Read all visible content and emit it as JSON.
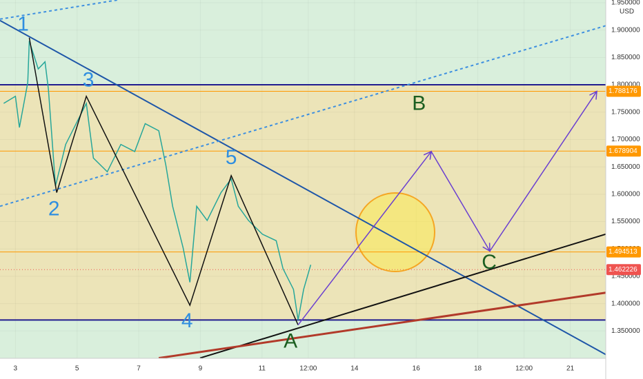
{
  "chart_data": {
    "type": "line",
    "currency": "USD",
    "xlim": [
      2.5,
      22.15
    ],
    "xticks": [
      3,
      5,
      7,
      9,
      11,
      {
        "value": 12.5,
        "label": "12:00"
      },
      14,
      16,
      18,
      {
        "value": 19.5,
        "label": "12:00"
      },
      21
    ],
    "ylim": [
      1.3,
      1.955
    ],
    "yticks": [
      {
        "value": 1.95,
        "label": "1.950000"
      },
      {
        "value": 1.9,
        "label": "1.900000"
      },
      {
        "value": 1.85,
        "label": "1.850000"
      },
      {
        "value": 1.8,
        "label": "1.800000"
      },
      {
        "value": 1.75,
        "label": "1.750000"
      },
      {
        "value": 1.7,
        "label": "1.700000"
      },
      {
        "value": 1.65,
        "label": "1.650000"
      },
      {
        "value": 1.6,
        "label": "1.600000"
      },
      {
        "value": 1.55,
        "label": "1.550000"
      },
      {
        "value": 1.5,
        "label": "1.500000"
      },
      {
        "value": 1.45,
        "label": "1.450000"
      },
      {
        "value": 1.4,
        "label": "1.400000"
      },
      {
        "value": 1.35,
        "label": "1.350000"
      }
    ],
    "series": [
      {
        "color": "#26a69a",
        "x": [
          2.62,
          3.0,
          3.13,
          3.4,
          3.45,
          3.74,
          3.96,
          4.07,
          4.3,
          4.63,
          4.97,
          5.3,
          5.53,
          5.98,
          6.42,
          6.87,
          7.21,
          7.65,
          7.88,
          8.1,
          8.44,
          8.66,
          8.88,
          9.22,
          9.67,
          10.0,
          10.23,
          10.56,
          11.01,
          11.46,
          11.68,
          12.02,
          12.17,
          12.35,
          12.58
        ],
        "values": [
          1.766,
          1.779,
          1.722,
          1.804,
          1.88,
          1.829,
          1.842,
          1.792,
          1.615,
          1.691,
          1.729,
          1.766,
          1.666,
          1.641,
          1.691,
          1.678,
          1.729,
          1.716,
          1.653,
          1.578,
          1.502,
          1.439,
          1.578,
          1.552,
          1.603,
          1.628,
          1.578,
          1.552,
          1.527,
          1.515,
          1.464,
          1.426,
          1.37,
          1.426,
          1.471
        ]
      }
    ],
    "box_lines": {
      "values": [
        1.8,
        1.37
      ],
      "color": "#1f1b8f"
    },
    "levels": [
      {
        "value": 1.788176,
        "color": "#ff9800"
      },
      {
        "value": 1.678904,
        "color": "#ff9800"
      },
      {
        "value": 1.494513,
        "color": "#ff9800"
      },
      {
        "value": 1.462226,
        "color": "#ef5350"
      }
    ],
    "trendlines": [
      {
        "x": [
          2.5,
          22.15
        ],
        "y": [
          1.9176,
          1.307
        ],
        "color": "#1e56a8",
        "dashed": false
      },
      {
        "x": [
          8.99,
          22.15
        ],
        "y": [
          1.3005,
          1.527
        ],
        "color": "#111111",
        "dashed": false
      },
      {
        "x": [
          7.65,
          22.15
        ],
        "y": [
          1.3005,
          1.42
        ],
        "color": "#b23a2a",
        "dashed": false
      },
      {
        "x": [
          2.5,
          22.15
        ],
        "y": [
          1.578,
          1.908
        ],
        "color": "#3d8fe0",
        "dashed": true
      },
      {
        "x": [
          2.5,
          6.31
        ],
        "y": [
          1.92,
          1.955
        ],
        "color": "#3d8fe0",
        "dashed": true
      }
    ],
    "waves": {
      "labels": [
        "1",
        "2",
        "3",
        "4",
        "5",
        "A"
      ],
      "x": [
        3.45,
        4.34,
        5.3,
        8.66,
        10.0,
        12.17
      ],
      "y": [
        1.886,
        1.603,
        1.779,
        1.397,
        1.634,
        1.361
      ],
      "label_colors": [
        "#2f8ee0",
        "#2f8ee0",
        "#2f8ee0",
        "#2f8ee0",
        "#2f8ee0",
        "#1b5e20"
      ],
      "color": "#111111"
    },
    "projection": {
      "x": [
        12.17,
        16.49,
        18.39,
        21.86
      ],
      "y": [
        1.361,
        1.678,
        1.496,
        1.788
      ],
      "color": "#6a3fd0"
    },
    "annotations": [
      {
        "text": "B",
        "x": 16.09,
        "y": 1.764,
        "color": "#1b5e20"
      },
      {
        "text": "C",
        "x": 18.37,
        "y": 1.474,
        "color": "#1b5e20"
      }
    ]
  }
}
